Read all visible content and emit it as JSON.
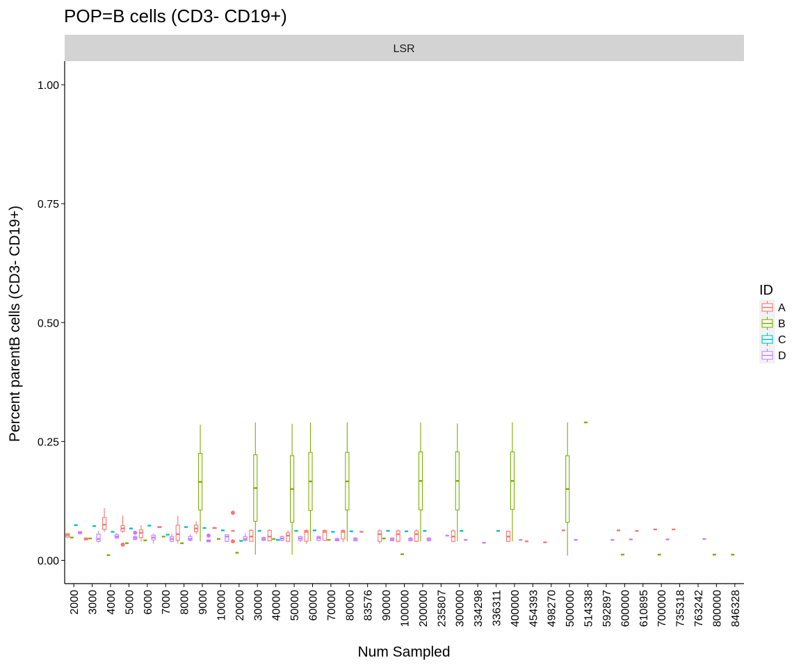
{
  "chart_data": {
    "type": "boxplot",
    "title": "POP=B cells (CD3- CD19+)",
    "facet": "LSR",
    "xlabel": "Num Sampled",
    "ylabel": "Percent parentB cells (CD3- CD19+)",
    "ylim": [
      -0.04,
      1.05
    ],
    "yticks": [
      "0.00",
      "0.25",
      "0.50",
      "0.75",
      "1.00"
    ],
    "ytick_values": [
      0,
      0.25,
      0.5,
      0.75,
      1.0
    ],
    "categories": [
      "2000",
      "3000",
      "4000",
      "5000",
      "6000",
      "7000",
      "8000",
      "9000",
      "10000",
      "20000",
      "30000",
      "40000",
      "50000",
      "60000",
      "70000",
      "80000",
      "83576",
      "90000",
      "100000",
      "200000",
      "235807",
      "300000",
      "334298",
      "336311",
      "400000",
      "454393",
      "498270",
      "500000",
      "514338",
      "592897",
      "600000",
      "610895",
      "700000",
      "735318",
      "763242",
      "800000",
      "846328"
    ],
    "legend": {
      "title": "ID",
      "entries": [
        {
          "name": "A",
          "color": "#F8766D"
        },
        {
          "name": "B",
          "color": "#7CAE00"
        },
        {
          "name": "C",
          "color": "#00BFC4"
        },
        {
          "name": "D",
          "color": "#C77CFF"
        }
      ]
    },
    "grid": false,
    "boxes": [
      {
        "cat": "2000",
        "id": "A",
        "stats": [
          0.047,
          0.049,
          0.053,
          0.056,
          0.058
        ]
      },
      {
        "cat": "2000",
        "id": "B",
        "stats": [
          0.048,
          0.048,
          0.048,
          0.048,
          0.048
        ]
      },
      {
        "cat": "2000",
        "id": "C",
        "stats": [
          0.074,
          0.074,
          0.074,
          0.074,
          0.074
        ]
      },
      {
        "cat": "2000",
        "id": "D",
        "stats": [
          0.055,
          0.056,
          0.058,
          0.06,
          0.062
        ]
      },
      {
        "cat": "3000",
        "id": "A",
        "stats": [
          0.042,
          0.043,
          0.045,
          0.047,
          0.048
        ]
      },
      {
        "cat": "3000",
        "id": "B",
        "stats": [
          0.046,
          0.046,
          0.046,
          0.046,
          0.046
        ]
      },
      {
        "cat": "3000",
        "id": "C",
        "stats": [
          0.072,
          0.072,
          0.072,
          0.072,
          0.072
        ]
      },
      {
        "cat": "3000",
        "id": "D",
        "stats": [
          0.038,
          0.04,
          0.045,
          0.055,
          0.062
        ]
      },
      {
        "cat": "4000",
        "id": "A",
        "stats": [
          0.06,
          0.065,
          0.075,
          0.09,
          0.11
        ]
      },
      {
        "cat": "4000",
        "id": "B",
        "stats": [
          0.011,
          0.011,
          0.011,
          0.011,
          0.011
        ]
      },
      {
        "cat": "4000",
        "id": "C",
        "stats": [
          0.06,
          0.06,
          0.06,
          0.06,
          0.06
        ]
      },
      {
        "cat": "4000",
        "id": "D",
        "stats": [
          0.045,
          0.047,
          0.05,
          0.054,
          0.058
        ]
      },
      {
        "cat": "5000",
        "id": "A",
        "stats": [
          0.058,
          0.061,
          0.067,
          0.073,
          0.094
        ],
        "outliers": [
          0.033
        ]
      },
      {
        "cat": "5000",
        "id": "B",
        "stats": [
          0.036,
          0.036,
          0.036,
          0.036,
          0.036
        ]
      },
      {
        "cat": "5000",
        "id": "C",
        "stats": [
          0.067,
          0.067,
          0.067,
          0.067,
          0.067
        ]
      },
      {
        "cat": "5000",
        "id": "D",
        "stats": [
          0.042,
          0.044,
          0.047,
          0.05,
          0.052
        ],
        "outliers": [
          0.058
        ]
      },
      {
        "cat": "6000",
        "id": "A",
        "stats": [
          0.04,
          0.048,
          0.058,
          0.064,
          0.074
        ]
      },
      {
        "cat": "6000",
        "id": "B",
        "stats": [
          0.042,
          0.042,
          0.042,
          0.042,
          0.042
        ]
      },
      {
        "cat": "6000",
        "id": "C",
        "stats": [
          0.073,
          0.073,
          0.073,
          0.073,
          0.073
        ]
      },
      {
        "cat": "6000",
        "id": "D",
        "stats": [
          0.035,
          0.043,
          0.048,
          0.053,
          0.056
        ]
      },
      {
        "cat": "7000",
        "id": "A",
        "stats": [
          0.069,
          0.069,
          0.07,
          0.071,
          0.071
        ]
      },
      {
        "cat": "7000",
        "id": "B",
        "stats": [
          0.05,
          0.05,
          0.05,
          0.05,
          0.05
        ]
      },
      {
        "cat": "7000",
        "id": "C",
        "stats": [
          0.054,
          0.054,
          0.054,
          0.054,
          0.054
        ]
      },
      {
        "cat": "7000",
        "id": "D",
        "stats": [
          0.038,
          0.04,
          0.045,
          0.05,
          0.056
        ]
      },
      {
        "cat": "8000",
        "id": "A",
        "stats": [
          0.035,
          0.042,
          0.055,
          0.074,
          0.094
        ]
      },
      {
        "cat": "8000",
        "id": "B",
        "stats": [
          0.036,
          0.036,
          0.036,
          0.036,
          0.036
        ]
      },
      {
        "cat": "8000",
        "id": "C",
        "stats": [
          0.07,
          0.07,
          0.07,
          0.07,
          0.07
        ]
      },
      {
        "cat": "8000",
        "id": "D",
        "stats": [
          0.04,
          0.042,
          0.045,
          0.05,
          0.055
        ]
      },
      {
        "cat": "9000",
        "id": "A",
        "stats": [
          0.055,
          0.06,
          0.067,
          0.074,
          0.082
        ]
      },
      {
        "cat": "9000",
        "id": "B",
        "stats": [
          0.04,
          0.106,
          0.165,
          0.225,
          0.285
        ]
      },
      {
        "cat": "9000",
        "id": "C",
        "stats": [
          0.068,
          0.068,
          0.068,
          0.068,
          0.068
        ]
      },
      {
        "cat": "9000",
        "id": "D",
        "stats": [
          0.038,
          0.039,
          0.041,
          0.043,
          0.044
        ],
        "outliers": [
          0.052
        ]
      },
      {
        "cat": "10000",
        "id": "A",
        "stats": [
          0.067,
          0.067,
          0.068,
          0.069,
          0.07
        ]
      },
      {
        "cat": "10000",
        "id": "B",
        "stats": [
          0.045,
          0.045,
          0.045,
          0.045,
          0.045
        ]
      },
      {
        "cat": "10000",
        "id": "C",
        "stats": [
          0.063,
          0.063,
          0.063,
          0.063,
          0.063
        ]
      },
      {
        "cat": "10000",
        "id": "D",
        "stats": [
          0.038,
          0.04,
          0.05,
          0.054,
          0.055
        ]
      },
      {
        "cat": "20000",
        "id": "A",
        "stats": [
          0.062,
          0.062,
          0.062,
          0.062,
          0.062
        ],
        "outliers": [
          0.1,
          0.04
        ]
      },
      {
        "cat": "20000",
        "id": "B",
        "stats": [
          0.016,
          0.016,
          0.016,
          0.016,
          0.016
        ]
      },
      {
        "cat": "20000",
        "id": "C",
        "stats": [
          0.041,
          0.041,
          0.041,
          0.041,
          0.041
        ]
      },
      {
        "cat": "20000",
        "id": "D",
        "stats": [
          0.04,
          0.042,
          0.045,
          0.05,
          0.057
        ]
      },
      {
        "cat": "30000",
        "id": "A",
        "stats": [
          0.04,
          0.04,
          0.05,
          0.063,
          0.065
        ]
      },
      {
        "cat": "30000",
        "id": "B",
        "stats": [
          0.012,
          0.082,
          0.152,
          0.222,
          0.29
        ]
      },
      {
        "cat": "30000",
        "id": "C",
        "stats": [
          0.062,
          0.062,
          0.062,
          0.062,
          0.062
        ]
      },
      {
        "cat": "30000",
        "id": "D",
        "stats": [
          0.04,
          0.042,
          0.045,
          0.048,
          0.05
        ]
      },
      {
        "cat": "40000",
        "id": "A",
        "stats": [
          0.04,
          0.041,
          0.05,
          0.063,
          0.065
        ]
      },
      {
        "cat": "40000",
        "id": "B",
        "stats": [
          0.045,
          0.045,
          0.045,
          0.045,
          0.045
        ]
      },
      {
        "cat": "40000",
        "id": "C",
        "stats": [
          0.043,
          0.043,
          0.043,
          0.043,
          0.043
        ]
      },
      {
        "cat": "40000",
        "id": "D",
        "stats": [
          0.04,
          0.042,
          0.046,
          0.05,
          0.052
        ]
      },
      {
        "cat": "50000",
        "id": "A",
        "stats": [
          0.038,
          0.04,
          0.052,
          0.058,
          0.063
        ]
      },
      {
        "cat": "50000",
        "id": "B",
        "stats": [
          0.012,
          0.08,
          0.15,
          0.22,
          0.287
        ]
      },
      {
        "cat": "50000",
        "id": "C",
        "stats": [
          0.062,
          0.062,
          0.062,
          0.062,
          0.062
        ]
      },
      {
        "cat": "50000",
        "id": "D",
        "stats": [
          0.038,
          0.042,
          0.046,
          0.05,
          0.052
        ]
      },
      {
        "cat": "60000",
        "id": "A",
        "stats": [
          0.035,
          0.04,
          0.06,
          0.063,
          0.065
        ]
      },
      {
        "cat": "60000",
        "id": "B",
        "stats": [
          0.04,
          0.105,
          0.166,
          0.227,
          0.29
        ]
      },
      {
        "cat": "60000",
        "id": "C",
        "stats": [
          0.063,
          0.063,
          0.063,
          0.063,
          0.063
        ]
      },
      {
        "cat": "60000",
        "id": "D",
        "stats": [
          0.04,
          0.042,
          0.047,
          0.05,
          0.052
        ]
      },
      {
        "cat": "70000",
        "id": "A",
        "stats": [
          0.042,
          0.042,
          0.06,
          0.063,
          0.065
        ]
      },
      {
        "cat": "70000",
        "id": "B",
        "stats": [
          0.043,
          0.043,
          0.043,
          0.043,
          0.043
        ]
      },
      {
        "cat": "70000",
        "id": "C",
        "stats": [
          0.06,
          0.06,
          0.06,
          0.06,
          0.06
        ]
      },
      {
        "cat": "70000",
        "id": "D",
        "stats": [
          0.04,
          0.041,
          0.043,
          0.046,
          0.048
        ]
      },
      {
        "cat": "80000",
        "id": "A",
        "stats": [
          0.038,
          0.045,
          0.06,
          0.063,
          0.065
        ]
      },
      {
        "cat": "80000",
        "id": "B",
        "stats": [
          0.04,
          0.106,
          0.166,
          0.227,
          0.29
        ]
      },
      {
        "cat": "80000",
        "id": "C",
        "stats": [
          0.061,
          0.061,
          0.061,
          0.061,
          0.061
        ]
      },
      {
        "cat": "80000",
        "id": "D",
        "stats": [
          0.04,
          0.041,
          0.044,
          0.047,
          0.049
        ]
      },
      {
        "cat": "83576",
        "id": "A",
        "stats": [
          0.06,
          0.06,
          0.06,
          0.06,
          0.06
        ]
      },
      {
        "cat": "90000",
        "id": "A",
        "stats": [
          0.035,
          0.04,
          0.055,
          0.062,
          0.065
        ]
      },
      {
        "cat": "90000",
        "id": "B",
        "stats": [
          0.046,
          0.046,
          0.046,
          0.046,
          0.046
        ]
      },
      {
        "cat": "90000",
        "id": "C",
        "stats": [
          0.062,
          0.062,
          0.062,
          0.062,
          0.062
        ]
      },
      {
        "cat": "90000",
        "id": "D",
        "stats": [
          0.04,
          0.041,
          0.044,
          0.047,
          0.049
        ]
      },
      {
        "cat": "100000",
        "id": "A",
        "stats": [
          0.038,
          0.04,
          0.055,
          0.062,
          0.065
        ]
      },
      {
        "cat": "100000",
        "id": "B",
        "stats": [
          0.013,
          0.013,
          0.013,
          0.013,
          0.013
        ]
      },
      {
        "cat": "100000",
        "id": "C",
        "stats": [
          0.061,
          0.061,
          0.061,
          0.061,
          0.061
        ]
      },
      {
        "cat": "100000",
        "id": "D",
        "stats": [
          0.04,
          0.041,
          0.044,
          0.047,
          0.049
        ]
      },
      {
        "cat": "200000",
        "id": "A",
        "stats": [
          0.038,
          0.04,
          0.055,
          0.062,
          0.065
        ]
      },
      {
        "cat": "200000",
        "id": "B",
        "stats": [
          0.04,
          0.106,
          0.167,
          0.228,
          0.29
        ]
      },
      {
        "cat": "200000",
        "id": "C",
        "stats": [
          0.062,
          0.062,
          0.062,
          0.062,
          0.062
        ]
      },
      {
        "cat": "200000",
        "id": "D",
        "stats": [
          0.04,
          0.041,
          0.044,
          0.047,
          0.049
        ]
      },
      {
        "cat": "235807",
        "id": "D",
        "stats": [
          0.052,
          0.052,
          0.052,
          0.052,
          0.052
        ]
      },
      {
        "cat": "300000",
        "id": "A",
        "stats": [
          0.038,
          0.04,
          0.05,
          0.062,
          0.065
        ]
      },
      {
        "cat": "300000",
        "id": "B",
        "stats": [
          0.04,
          0.106,
          0.167,
          0.228,
          0.288
        ]
      },
      {
        "cat": "300000",
        "id": "C",
        "stats": [
          0.062,
          0.062,
          0.062,
          0.062,
          0.062
        ]
      },
      {
        "cat": "300000",
        "id": "D",
        "stats": [
          0.043,
          0.043,
          0.043,
          0.043,
          0.043
        ]
      },
      {
        "cat": "334298",
        "id": "D",
        "stats": [
          0.037,
          0.037,
          0.037,
          0.037,
          0.037
        ]
      },
      {
        "cat": "336311",
        "id": "C",
        "stats": [
          0.062,
          0.062,
          0.062,
          0.062,
          0.062
        ]
      },
      {
        "cat": "400000",
        "id": "A",
        "stats": [
          0.038,
          0.04,
          0.05,
          0.061,
          0.063
        ]
      },
      {
        "cat": "400000",
        "id": "B",
        "stats": [
          0.04,
          0.107,
          0.167,
          0.228,
          0.29
        ]
      },
      {
        "cat": "400000",
        "id": "D",
        "stats": [
          0.043,
          0.043,
          0.043,
          0.043,
          0.043
        ]
      },
      {
        "cat": "454393",
        "id": "A",
        "stats": [
          0.04,
          0.04,
          0.04,
          0.04,
          0.04
        ]
      },
      {
        "cat": "498270",
        "id": "A",
        "stats": [
          0.038,
          0.038,
          0.038,
          0.038,
          0.038
        ]
      },
      {
        "cat": "500000",
        "id": "A",
        "stats": [
          0.063,
          0.063,
          0.063,
          0.063,
          0.063
        ]
      },
      {
        "cat": "500000",
        "id": "B",
        "stats": [
          0.01,
          0.08,
          0.15,
          0.22,
          0.29
        ]
      },
      {
        "cat": "500000",
        "id": "D",
        "stats": [
          0.043,
          0.043,
          0.043,
          0.043,
          0.043
        ]
      },
      {
        "cat": "514338",
        "id": "B",
        "stats": [
          0.29,
          0.29,
          0.29,
          0.29,
          0.29
        ]
      },
      {
        "cat": "592897",
        "id": "D",
        "stats": [
          0.043,
          0.043,
          0.043,
          0.043,
          0.043
        ]
      },
      {
        "cat": "600000",
        "id": "A",
        "stats": [
          0.063,
          0.063,
          0.063,
          0.063,
          0.063
        ]
      },
      {
        "cat": "600000",
        "id": "B",
        "stats": [
          0.012,
          0.012,
          0.012,
          0.012,
          0.012
        ]
      },
      {
        "cat": "600000",
        "id": "D",
        "stats": [
          0.044,
          0.044,
          0.044,
          0.044,
          0.044
        ]
      },
      {
        "cat": "610895",
        "id": "A",
        "stats": [
          0.062,
          0.062,
          0.062,
          0.062,
          0.062
        ]
      },
      {
        "cat": "700000",
        "id": "A",
        "stats": [
          0.065,
          0.065,
          0.065,
          0.065,
          0.065
        ]
      },
      {
        "cat": "700000",
        "id": "B",
        "stats": [
          0.012,
          0.012,
          0.012,
          0.012,
          0.012
        ]
      },
      {
        "cat": "700000",
        "id": "D",
        "stats": [
          0.044,
          0.044,
          0.044,
          0.044,
          0.044
        ]
      },
      {
        "cat": "735318",
        "id": "A",
        "stats": [
          0.065,
          0.065,
          0.065,
          0.065,
          0.065
        ]
      },
      {
        "cat": "763242",
        "id": "D",
        "stats": [
          0.045,
          0.045,
          0.045,
          0.045,
          0.045
        ]
      },
      {
        "cat": "800000",
        "id": "B",
        "stats": [
          0.012,
          0.012,
          0.012,
          0.012,
          0.012
        ]
      },
      {
        "cat": "846328",
        "id": "B",
        "stats": [
          0.012,
          0.012,
          0.012,
          0.012,
          0.012
        ]
      }
    ]
  }
}
